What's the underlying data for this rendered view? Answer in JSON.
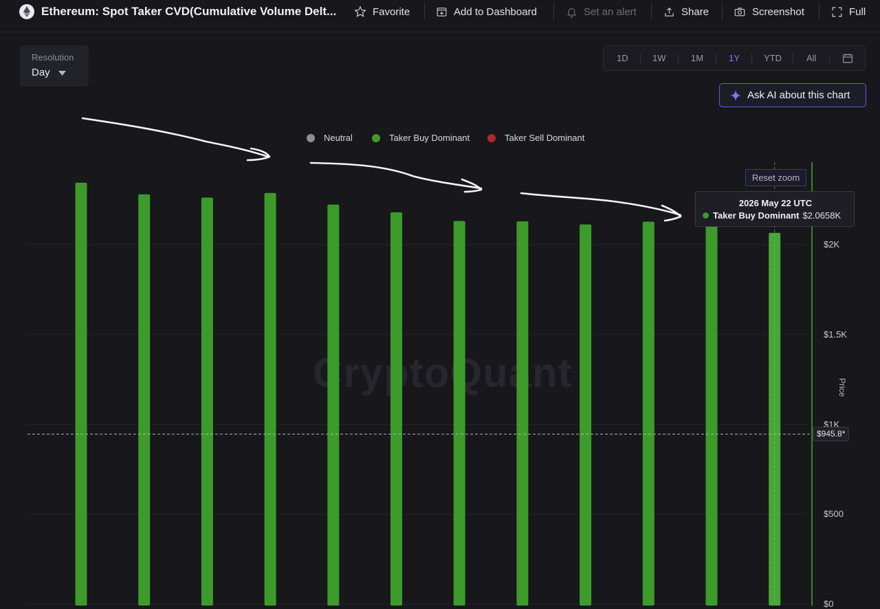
{
  "header": {
    "title": "Ethereum: Spot Taker CVD(Cumulative Volume Delt...",
    "favorite_label": "Favorite",
    "dashboard_label": "Add to Dashboard",
    "alert_label": "Set an alert",
    "share_label": "Share",
    "screenshot_label": "Screenshot",
    "fullscreen_label": "Full"
  },
  "controls": {
    "resolution_label": "Resolution",
    "resolution_value": "Day",
    "ranges": [
      "1D",
      "1W",
      "1M",
      "1Y",
      "YTD",
      "All"
    ],
    "active_range": "1Y",
    "ask_ai_label": "Ask AI about this chart",
    "reset_zoom_label": "Reset zoom"
  },
  "legend": [
    {
      "label": "Neutral",
      "color": "#8e8e96"
    },
    {
      "label": "Taker Buy Dominant",
      "color": "#3d9b2b"
    },
    {
      "label": "Taker Sell Dominant",
      "color": "#b3262b"
    }
  ],
  "tooltip": {
    "date": "2026 May 22 UTC",
    "series": "Taker Buy Dominant",
    "value": "$2.0658K"
  },
  "watermark": "CryptoQuant",
  "chart_data": {
    "type": "bar",
    "ylabel": "Price",
    "ylim": [
      0,
      2400
    ],
    "y_ticks": [
      "$0",
      "$500",
      "$1K",
      "$1.5K",
      "$2K"
    ],
    "series": [
      {
        "name": "Taker Buy Dominant",
        "color": "#3d9b2b",
        "values": [
          2345,
          2280,
          2262,
          2288,
          2223,
          2180,
          2132,
          2130,
          2113,
          2128,
          2110,
          2066
        ]
      }
    ],
    "current_price_label": "$945.8*",
    "current_price": 945.8
  }
}
